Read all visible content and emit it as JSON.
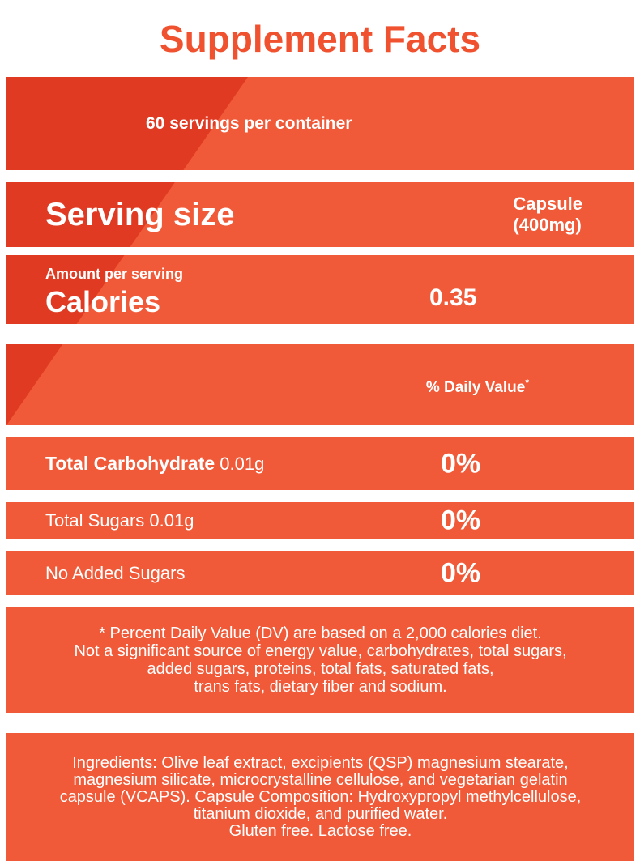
{
  "colors": {
    "accent": "#f0512e",
    "band-light": "#f15a38",
    "band-dark": "#e03a23",
    "band-text": "#ffffff",
    "page-bg": "#ffffff"
  },
  "header": {
    "title": "Supplement Facts"
  },
  "servings": {
    "text": "60 servings per container"
  },
  "serving_size": {
    "label": "Serving size",
    "value_line1": "Capsule",
    "value_line2": "(400mg)"
  },
  "calories": {
    "label": "Amount per serving",
    "name": "Calories",
    "value": "0.35"
  },
  "daily_value": {
    "header": "% Daily Value",
    "sup": "*"
  },
  "nutrients": [
    {
      "name_bold": "Total Carbohydrate",
      "name_rest": " 0.01g",
      "dv": "0%"
    },
    {
      "name_bold": "",
      "name_rest": "Total Sugars 0.01g",
      "dv": "0%"
    },
    {
      "name_bold": "",
      "name_rest": "No Added Sugars",
      "dv": "0%"
    }
  ],
  "footnote": {
    "lines": [
      "* Percent Daily Value (DV) are based on a 2,000 calories diet.",
      "Not a significant source of energy value, carbohydrates, total sugars,",
      "added sugars, proteins, total fats, saturated fats,",
      "trans fats, dietary fiber and sodium."
    ]
  },
  "ingredients": {
    "lines": [
      "Ingredients: Olive leaf extract, excipients (QSP) magnesium stearate,",
      "magnesium silicate, microcrystalline cellulose, and vegetarian gelatin",
      "capsule (VCAPS). Capsule Composition: Hydroxypropyl methylcellulose,",
      "titanium dioxide, and purified water.",
      "Gluten free. Lactose free."
    ]
  }
}
